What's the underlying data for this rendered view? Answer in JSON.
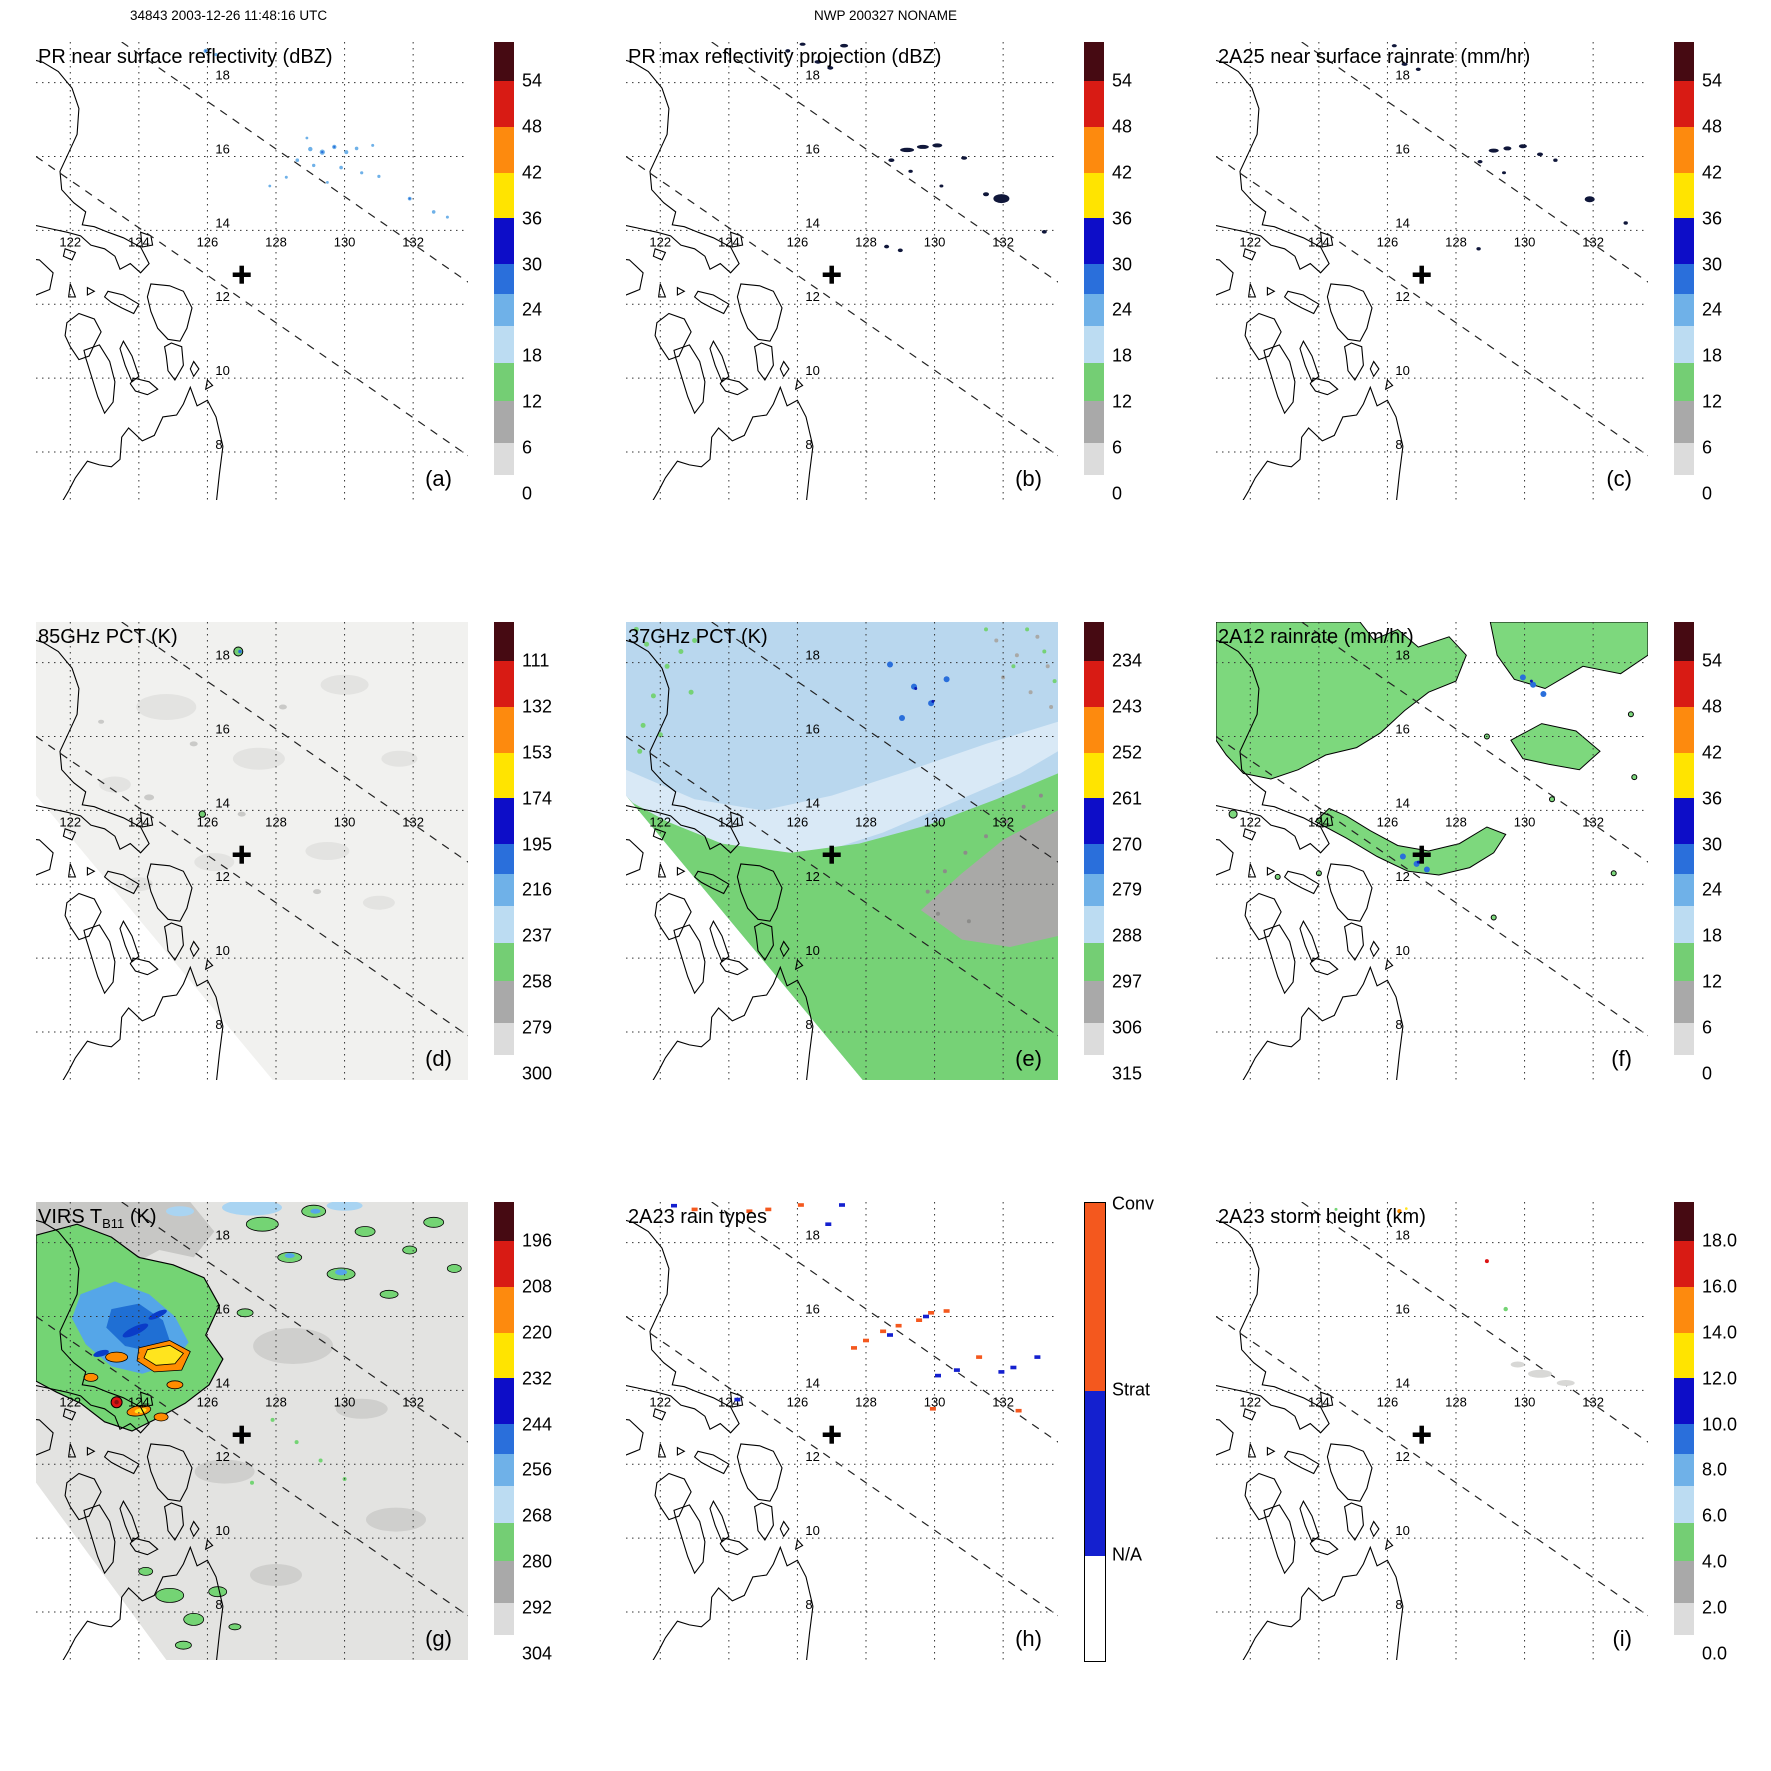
{
  "header": {
    "left": "34843 2003-12-26 11:48:16 UTC",
    "center": "NWP 200327 NONAME"
  },
  "map": {
    "lon_labels": [
      "122",
      "124",
      "126",
      "128",
      "130",
      "132"
    ],
    "lat_labels": [
      "18",
      "16",
      "14",
      "12",
      "10",
      "8"
    ],
    "cross_symbol": "+"
  },
  "palettes": {
    "rainbow": [
      {
        "c": "#460a12",
        "f": 0.085
      },
      {
        "c": "#d81b14",
        "f": 0.1
      },
      {
        "c": "#fd8a0e",
        "f": 0.1
      },
      {
        "c": "#ffe400",
        "f": 0.1
      },
      {
        "c": "#0d0dc8",
        "f": 0.1
      },
      {
        "c": "#2a6fdb",
        "f": 0.065
      },
      {
        "c": "#6fb1e8",
        "f": 0.07
      },
      {
        "c": "#bcdcf2",
        "f": 0.08
      },
      {
        "c": "#74ce74",
        "f": 0.085
      },
      {
        "c": "#a9a9a9",
        "f": 0.09
      },
      {
        "c": "#dcdcdc",
        "f": 0.07
      },
      {
        "c": "#ffffff",
        "f": 0.055
      }
    ],
    "raintype": [
      {
        "c": "#f4581e",
        "f": 0.41
      },
      {
        "c": "#1420cf",
        "f": 0.36
      },
      {
        "c": "#ffffff",
        "f": 0.23
      }
    ]
  },
  "panels": [
    {
      "id": "a",
      "letter": "(a)",
      "title": "PR near surface reflectivity (dBZ)",
      "palette": "rainbow",
      "ticks": [
        "54",
        "48",
        "42",
        "36",
        "30",
        "24",
        "18",
        "12",
        "6",
        "0"
      ]
    },
    {
      "id": "b",
      "letter": "(b)",
      "title": "PR max reflectivity projection (dBZ)",
      "palette": "rainbow",
      "ticks": [
        "54",
        "48",
        "42",
        "36",
        "30",
        "24",
        "18",
        "12",
        "6",
        "0"
      ]
    },
    {
      "id": "c",
      "letter": "(c)",
      "title": "2A25 near surface rainrate (mm/hr)",
      "palette": "rainbow",
      "ticks": [
        "54",
        "48",
        "42",
        "36",
        "30",
        "24",
        "18",
        "12",
        "6",
        "0"
      ]
    },
    {
      "id": "d",
      "letter": "(d)",
      "title": "85GHz PCT (K)",
      "palette": "rainbow",
      "ticks": [
        "111",
        "132",
        "153",
        "174",
        "195",
        "216",
        "237",
        "258",
        "279",
        "300"
      ]
    },
    {
      "id": "e",
      "letter": "(e)",
      "title": "37GHz PCT (K)",
      "palette": "rainbow",
      "ticks": [
        "234",
        "243",
        "252",
        "261",
        "270",
        "279",
        "288",
        "297",
        "306",
        "315"
      ]
    },
    {
      "id": "f",
      "letter": "(f)",
      "title": "2A12 rainrate (mm/hr)",
      "palette": "rainbow",
      "ticks": [
        "54",
        "48",
        "42",
        "36",
        "30",
        "24",
        "18",
        "12",
        "6",
        "0"
      ]
    },
    {
      "id": "g",
      "letter": "(g)",
      "title": "VIRS T",
      "title_sub": "B11",
      "title_suffix": " (K)",
      "palette": "rainbow",
      "ticks": [
        "196",
        "208",
        "220",
        "232",
        "244",
        "256",
        "268",
        "280",
        "292",
        "304"
      ]
    },
    {
      "id": "h",
      "letter": "(h)",
      "title": "2A23 rain types",
      "palette": "raintype",
      "ticks": [
        {
          "label": "Conv",
          "pos": 0.004
        },
        {
          "label": "Strat",
          "pos": 0.41
        },
        {
          "label": "N/A",
          "pos": 0.77
        }
      ]
    },
    {
      "id": "i",
      "letter": "(i)",
      "title": "2A23 storm height (km)",
      "palette": "rainbow",
      "ticks": [
        "18.0",
        "16.0",
        "14.0",
        "12.0",
        "10.0",
        "8.0",
        "6.0",
        "4.0",
        "2.0",
        "0.0"
      ]
    }
  ],
  "chart_data": {
    "type": "heatmap",
    "figure": "3x3 grid of satellite overpass map panels over the Philippines / Philippine Sea",
    "orbit": "34843",
    "time_utc": "2003-12-26 11:48:16",
    "label": "NWP 200327 NONAME",
    "lon_ticks": [
      122,
      124,
      126,
      128,
      130,
      132
    ],
    "lat_ticks": [
      8,
      10,
      12,
      14,
      16,
      18
    ],
    "lon_range": [
      121.0,
      133.6
    ],
    "lat_range": [
      6.7,
      19.1
    ],
    "grid": "dotted",
    "storm_center_cross_lonlat": [
      127.0,
      12.8
    ],
    "swath_edges": "two parallel dashed lines from upper-left to lower-right",
    "panels": [
      {
        "id": "(a)",
        "title": "PR near surface reflectivity (dBZ)",
        "scale_ticks": [
          54,
          48,
          42,
          36,
          30,
          24,
          18,
          12,
          6,
          0
        ],
        "content": "scattered weak 18-30 dBZ echoes near 129-131E / 15-16.5N; minor pixels near 126E/18.8N and 132.5-133E/14.3-14.5N"
      },
      {
        "id": "(b)",
        "title": "PR max reflectivity projection (dBZ)",
        "scale_ticks": [
          54,
          48,
          42,
          36,
          30,
          24,
          18,
          12,
          6,
          0
        ],
        "content": "dark 30-36 dBZ streaks 129-130.5E / 16-16.3N, cluster near 132E/14.9N, specks near 126.5-127.4E/18.4-19N and 128.5-129E/13.5N"
      },
      {
        "id": "(c)",
        "title": "2A25 near surface rainrate (mm/hr)",
        "scale_ticks": [
          54,
          48,
          42,
          36,
          30,
          24,
          18,
          12,
          6,
          0
        ],
        "content": "sparse rain pixels matching the PR echo locations along the swath"
      },
      {
        "id": "(d)",
        "title": "85GHz PCT (K)",
        "scale_ticks": [
          111,
          132,
          153,
          174,
          195,
          216,
          237,
          258,
          279,
          300
        ],
        "content": "swath mostly 280-300 K (near white); small depressed-PCT specks near 126.9E/18.3N and 125.9E/13.9N"
      },
      {
        "id": "(e)",
        "title": "37GHz PCT (K)",
        "scale_ticks": [
          234,
          243,
          252,
          261,
          270,
          279,
          288,
          297,
          306,
          315
        ],
        "content": "light-blue 270-282 K over NW ocean part of swath, green 285-297 K over SE part, gray 297-306 K patch near 130-133.5E / 10.5-14N"
      },
      {
        "id": "(f)",
        "title": "2A12 rainrate (mm/hr)",
        "scale_ticks": [
          54,
          48,
          42,
          36,
          30,
          24,
          18,
          12,
          6,
          0
        ],
        "content": "broad light rain (<6 mm/hr, green, black contoured) over NW half of swath and an arc 124-129.5E / 12.2-14N; embedded 6-24 mm/hr blue pixels near 130-130.5E/17.2-17.6N and 126.4-127.2E/12.4-12.8N"
      },
      {
        "id": "(g)",
        "title": "VIRS TB11 (K)",
        "scale_ticks": [
          196,
          208,
          220,
          232,
          244,
          256,
          268,
          280,
          292,
          304
        ],
        "content": "cold cloud shield 200-268 K (green/blue) over 121-126.5E / 13-18.5N with coldest cores 200-232 K (yellow/orange/red) near 123-125.5E / 13-15.5N; warm gray 280-304 K elsewhere; scattered green/blue cells NE and S"
      },
      {
        "id": "(h)",
        "title": "2A23 rain types",
        "scale_labels": [
          "Conv",
          "Strat",
          "N/A"
        ],
        "content": "scattered convective (orange) and stratiform (blue) pixels along 127.5-130.5E / 15-16.3N, near 124.5-127E / 18.4-19N and 130.5-133E / 13.4-15N"
      },
      {
        "id": "(i)",
        "title": "2A23 storm height (km)",
        "scale_ticks": [
          18.0,
          16.0,
          14.0,
          12.0,
          10.0,
          8.0,
          6.0,
          4.0,
          2.0,
          0.0
        ],
        "content": "isolated storm-height pixels: ~12-14 km near 126.4E/18.9N, ~16 km near 128.9E/17.5N, ~6 km near 129.5E/16.2N, shallow gray pixels near 130-131.5E/14-14.7N"
      }
    ]
  }
}
